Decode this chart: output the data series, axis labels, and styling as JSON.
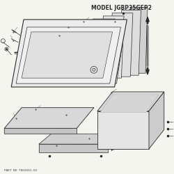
{
  "title": "MODEL JGBP35GEP2",
  "bg_color": "#f5f5f0",
  "line_color": "#2a2a2a",
  "title_fontsize": 5.5,
  "footer_text": "PART NO 7002041-02",
  "fig_size": [
    2.5,
    2.5
  ],
  "dpi": 100
}
